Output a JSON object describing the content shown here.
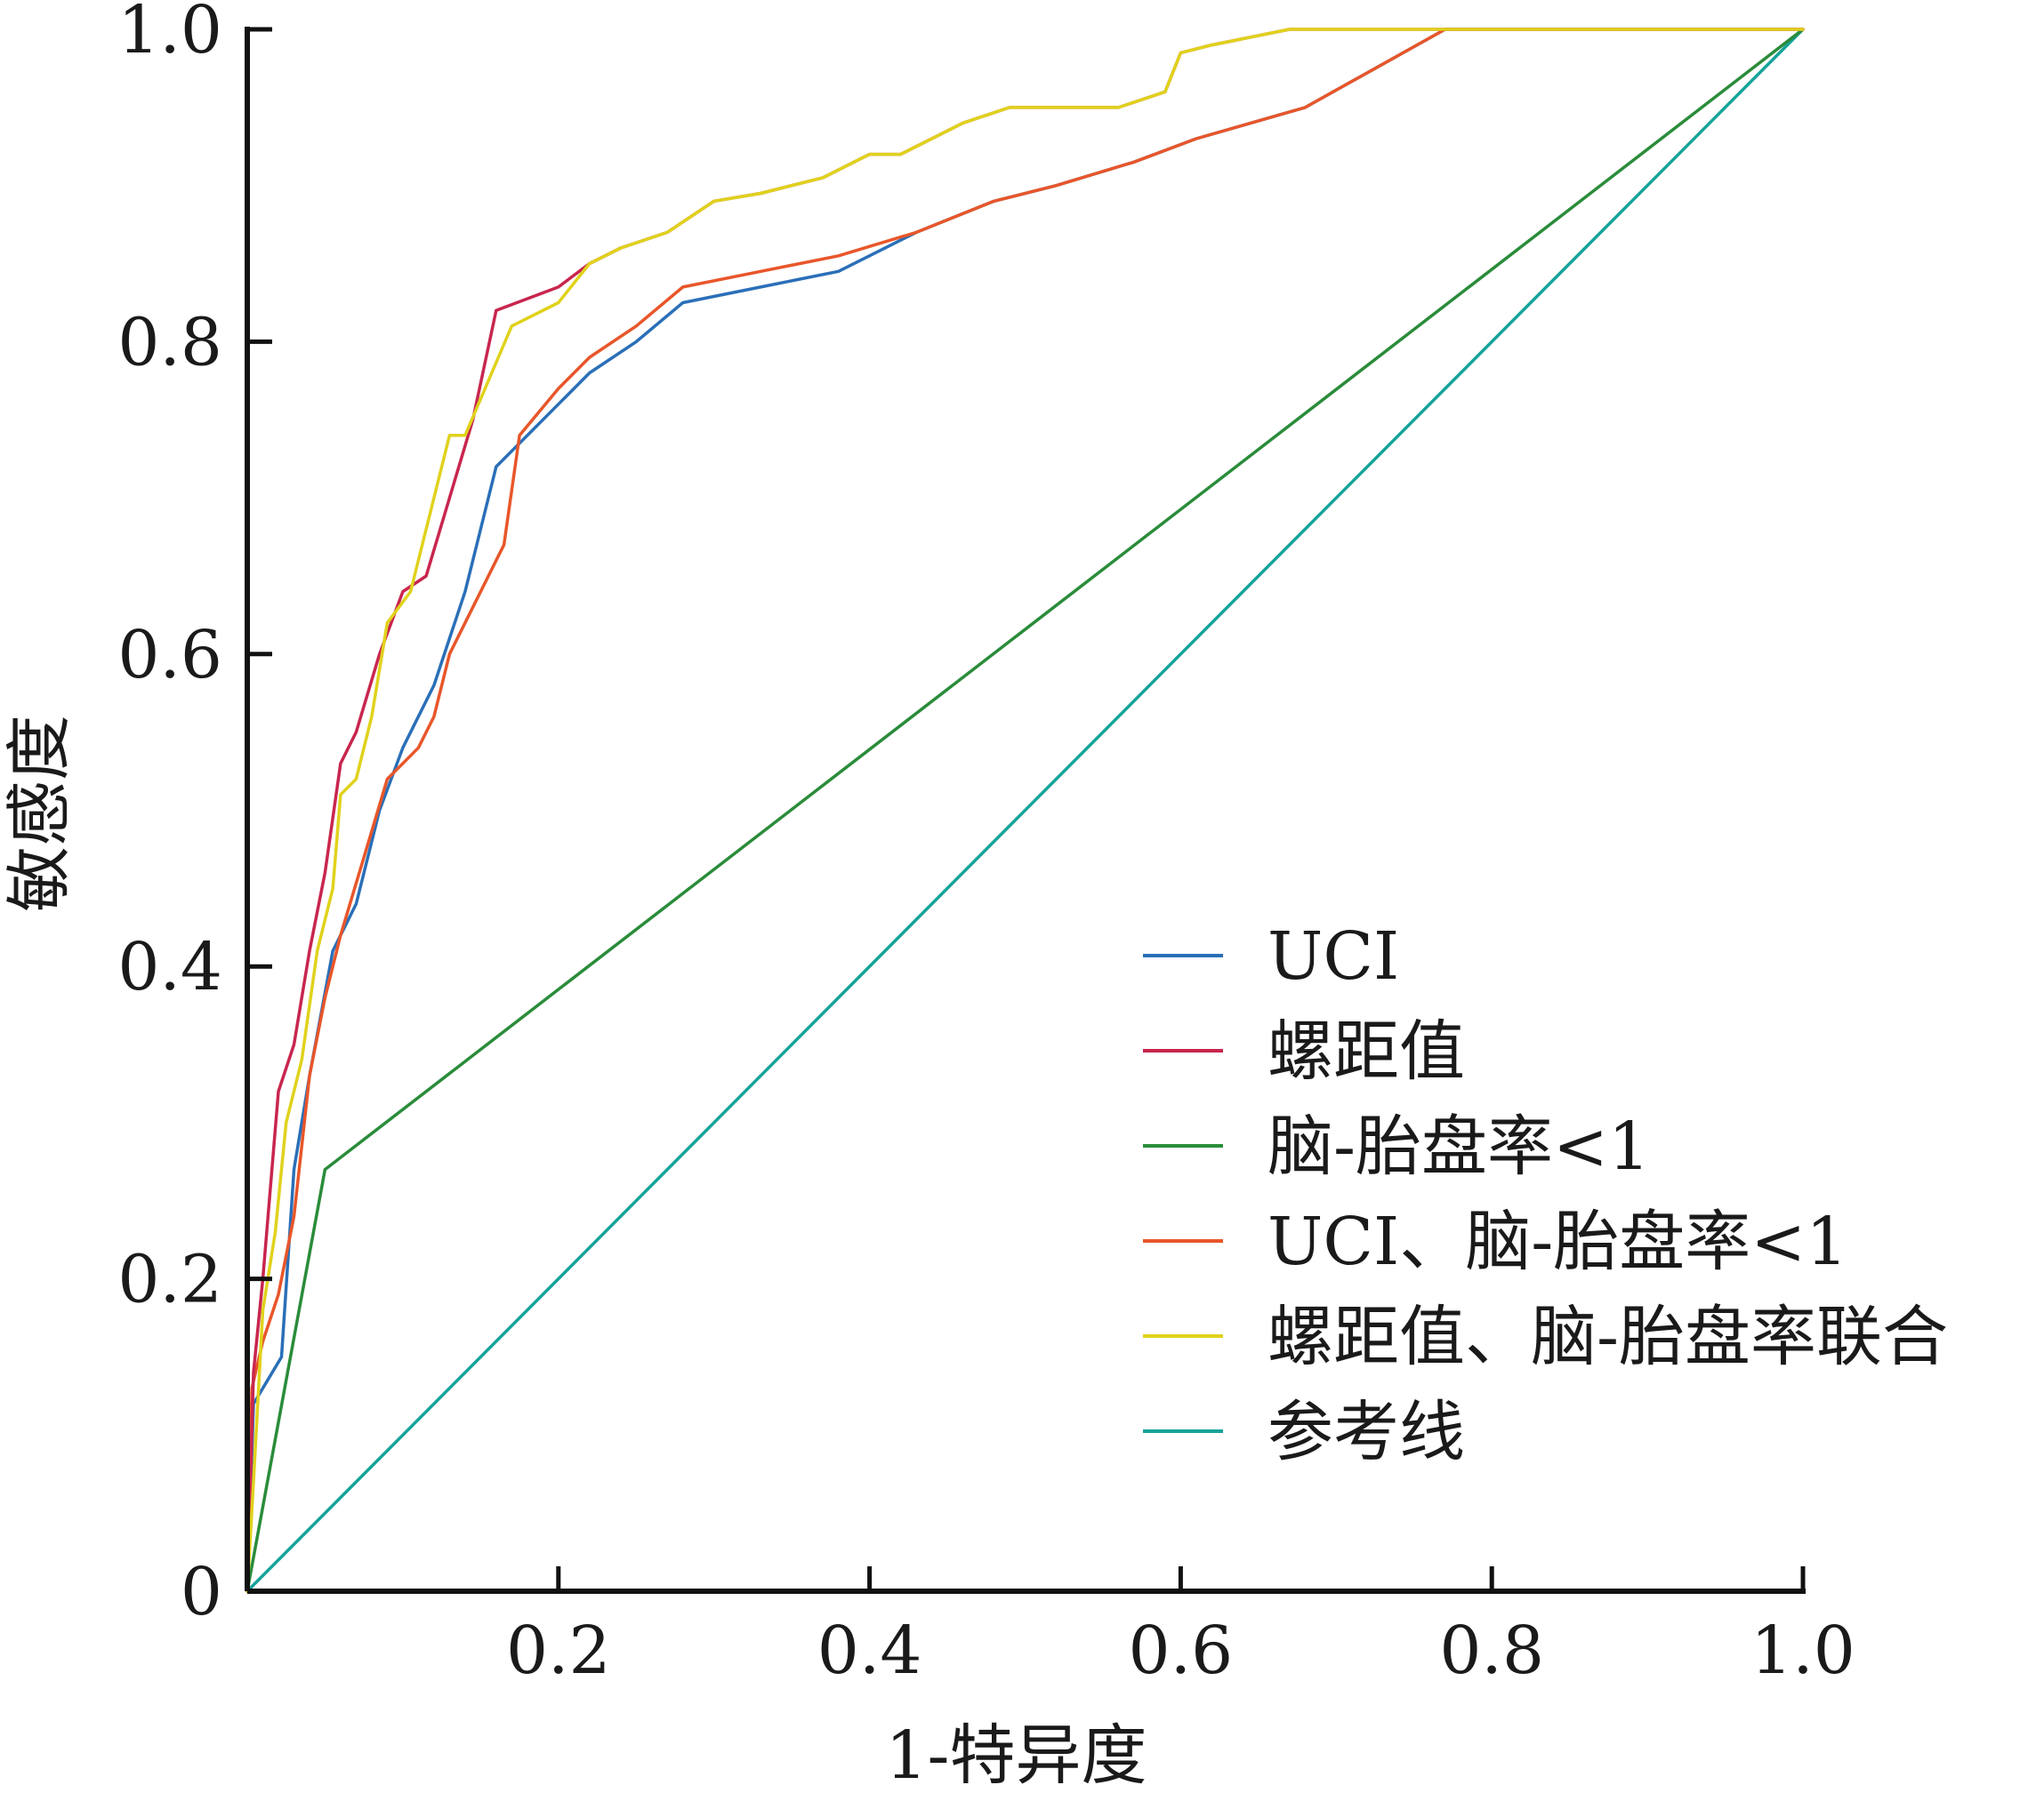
{
  "chart_data": {
    "type": "line",
    "title": "",
    "xlabel": "1-特异度",
    "ylabel": "敏感度",
    "xlim": [
      0,
      1
    ],
    "ylim": [
      0,
      1
    ],
    "x_ticks": [
      {
        "value": 0.2,
        "label": "0.2"
      },
      {
        "value": 0.4,
        "label": "0.4"
      },
      {
        "value": 0.6,
        "label": "0.6"
      },
      {
        "value": 0.8,
        "label": "0.8"
      },
      {
        "value": 1.0,
        "label": "1.0"
      }
    ],
    "y_ticks": [
      {
        "value": 0,
        "label": "0"
      },
      {
        "value": 0.2,
        "label": "0.2"
      },
      {
        "value": 0.4,
        "label": "0.4"
      },
      {
        "value": 0.6,
        "label": "0.6"
      },
      {
        "value": 0.8,
        "label": "0.8"
      },
      {
        "value": 1.0,
        "label": "1.0"
      }
    ],
    "grid": false,
    "legend_position": "bottom-right",
    "series": [
      {
        "name": "UCI",
        "color": "#2a6fb8",
        "points": [
          [
            0,
            0
          ],
          [
            0.004,
            0.12
          ],
          [
            0.022,
            0.15
          ],
          [
            0.03,
            0.27
          ],
          [
            0.04,
            0.33
          ],
          [
            0.055,
            0.41
          ],
          [
            0.07,
            0.44
          ],
          [
            0.085,
            0.5
          ],
          [
            0.1,
            0.54
          ],
          [
            0.12,
            0.58
          ],
          [
            0.14,
            0.64
          ],
          [
            0.16,
            0.72
          ],
          [
            0.2,
            0.76
          ],
          [
            0.22,
            0.78
          ],
          [
            0.25,
            0.8
          ],
          [
            0.28,
            0.825
          ],
          [
            0.33,
            0.835
          ],
          [
            0.38,
            0.845
          ],
          [
            0.43,
            0.87
          ],
          [
            0.48,
            0.89
          ],
          [
            0.52,
            0.9
          ],
          [
            0.57,
            0.915
          ],
          [
            0.61,
            0.93
          ],
          [
            0.68,
            0.95
          ],
          [
            0.77,
            1.0
          ],
          [
            1,
            1
          ]
        ]
      },
      {
        "name": "螺距值",
        "color": "#c8264e",
        "points": [
          [
            0,
            0
          ],
          [
            0.004,
            0.14
          ],
          [
            0.01,
            0.2
          ],
          [
            0.02,
            0.32
          ],
          [
            0.03,
            0.35
          ],
          [
            0.04,
            0.41
          ],
          [
            0.05,
            0.46
          ],
          [
            0.06,
            0.53
          ],
          [
            0.07,
            0.55
          ],
          [
            0.085,
            0.6
          ],
          [
            0.1,
            0.64
          ],
          [
            0.115,
            0.65
          ],
          [
            0.13,
            0.7
          ],
          [
            0.145,
            0.75
          ],
          [
            0.16,
            0.82
          ],
          [
            0.2,
            0.835
          ],
          [
            0.22,
            0.85
          ],
          [
            0.24,
            0.86
          ],
          [
            0.27,
            0.87
          ],
          [
            0.3,
            0.89
          ],
          [
            0.33,
            0.895
          ],
          [
            0.37,
            0.905
          ],
          [
            0.4,
            0.92
          ],
          [
            0.42,
            0.92
          ],
          [
            0.46,
            0.94
          ],
          [
            0.49,
            0.95
          ],
          [
            0.53,
            0.95
          ],
          [
            0.56,
            0.95
          ],
          [
            0.59,
            0.96
          ],
          [
            0.6,
            0.985
          ],
          [
            0.62,
            0.99
          ],
          [
            0.67,
            1.0
          ],
          [
            1,
            1
          ]
        ]
      },
      {
        "name": "脑-胎盘率<1",
        "color": "#2a8c3a",
        "points": [
          [
            0,
            0
          ],
          [
            0.05,
            0.27
          ],
          [
            1,
            1
          ]
        ]
      },
      {
        "name": "UCI、脑-胎盘率<1",
        "color": "#e8562a",
        "points": [
          [
            0,
            0
          ],
          [
            0.003,
            0.13
          ],
          [
            0.01,
            0.16
          ],
          [
            0.02,
            0.19
          ],
          [
            0.03,
            0.24
          ],
          [
            0.04,
            0.33
          ],
          [
            0.05,
            0.38
          ],
          [
            0.06,
            0.42
          ],
          [
            0.075,
            0.47
          ],
          [
            0.09,
            0.52
          ],
          [
            0.1,
            0.53
          ],
          [
            0.11,
            0.54
          ],
          [
            0.12,
            0.56
          ],
          [
            0.13,
            0.6
          ],
          [
            0.165,
            0.67
          ],
          [
            0.175,
            0.74
          ],
          [
            0.2,
            0.77
          ],
          [
            0.22,
            0.79
          ],
          [
            0.25,
            0.81
          ],
          [
            0.28,
            0.835
          ],
          [
            0.33,
            0.845
          ],
          [
            0.38,
            0.855
          ],
          [
            0.43,
            0.87
          ],
          [
            0.48,
            0.89
          ],
          [
            0.52,
            0.9
          ],
          [
            0.57,
            0.915
          ],
          [
            0.61,
            0.93
          ],
          [
            0.68,
            0.95
          ],
          [
            0.77,
            1.0
          ],
          [
            1,
            1
          ]
        ]
      },
      {
        "name": "螺距值、脑-胎盘率联合",
        "color": "#e0d21c",
        "points": [
          [
            0,
            0
          ],
          [
            0.004,
            0.07
          ],
          [
            0.01,
            0.18
          ],
          [
            0.018,
            0.23
          ],
          [
            0.025,
            0.3
          ],
          [
            0.035,
            0.34
          ],
          [
            0.045,
            0.41
          ],
          [
            0.055,
            0.45
          ],
          [
            0.06,
            0.51
          ],
          [
            0.07,
            0.52
          ],
          [
            0.08,
            0.56
          ],
          [
            0.09,
            0.62
          ],
          [
            0.105,
            0.64
          ],
          [
            0.13,
            0.74
          ],
          [
            0.14,
            0.74
          ],
          [
            0.17,
            0.81
          ],
          [
            0.2,
            0.825
          ],
          [
            0.22,
            0.85
          ],
          [
            0.24,
            0.86
          ],
          [
            0.27,
            0.87
          ],
          [
            0.3,
            0.89
          ],
          [
            0.33,
            0.895
          ],
          [
            0.37,
            0.905
          ],
          [
            0.4,
            0.92
          ],
          [
            0.42,
            0.92
          ],
          [
            0.46,
            0.94
          ],
          [
            0.49,
            0.95
          ],
          [
            0.53,
            0.95
          ],
          [
            0.56,
            0.95
          ],
          [
            0.59,
            0.96
          ],
          [
            0.6,
            0.985
          ],
          [
            0.62,
            0.99
          ],
          [
            0.67,
            1.0
          ],
          [
            1,
            1
          ]
        ]
      },
      {
        "name": "参考线",
        "color": "#14a39a",
        "points": [
          [
            0,
            0
          ],
          [
            1,
            1
          ]
        ]
      }
    ]
  }
}
